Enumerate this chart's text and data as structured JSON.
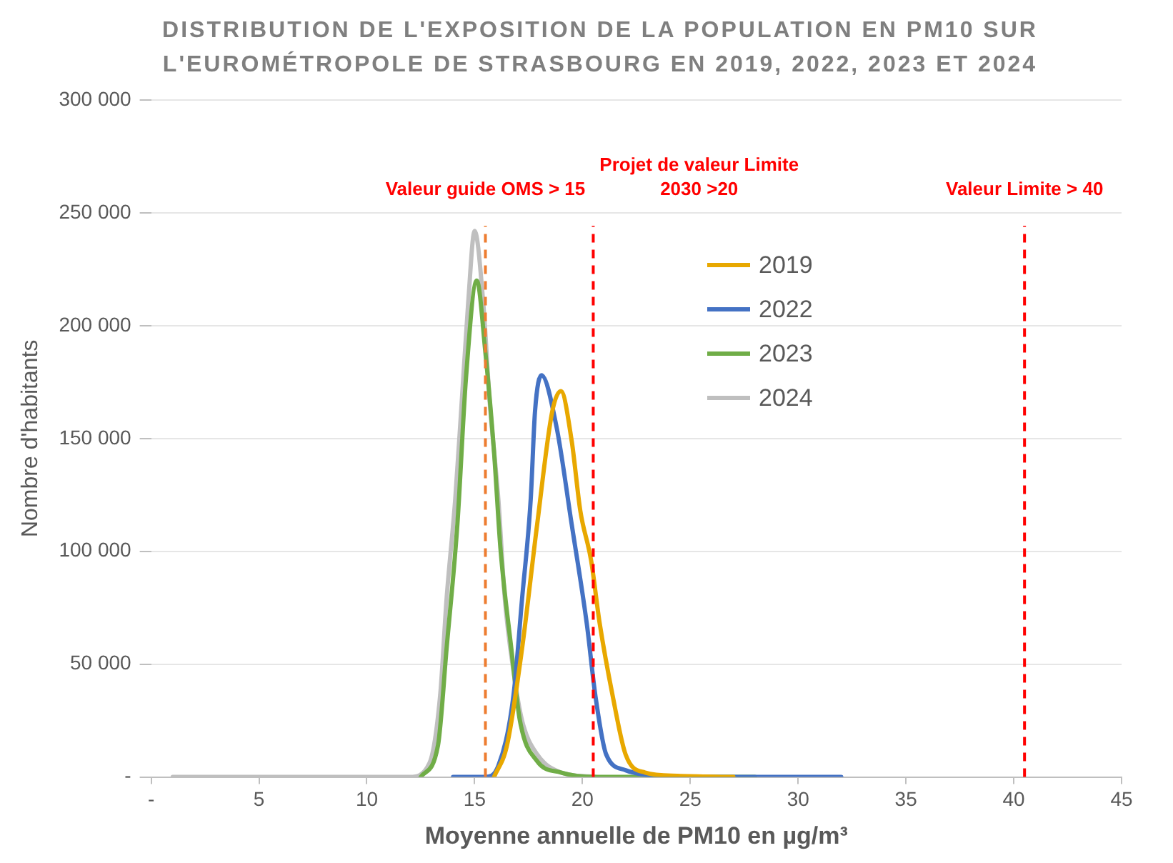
{
  "chart_data": {
    "type": "line",
    "title": "DISTRIBUTION DE L'EXPOSITION DE LA POPULATION EN PM10 SUR\nL'EUROMÉTROPOLE DE STRASBOURG EN 2019, 2022, 2023 ET 2024",
    "xlabel": "Moyenne annuelle de PM10 en µg/m³",
    "ylabel": "Nombre d'habitants",
    "xlim": [
      0,
      45
    ],
    "xticks": [
      {
        "value": 0,
        "label": "-"
      },
      5,
      10,
      15,
      20,
      25,
      30,
      35,
      40,
      45
    ],
    "ylim": [
      0,
      300000
    ],
    "yticks": [
      {
        "value": 0,
        "label": "-"
      },
      {
        "value": 50000,
        "label": "50 000"
      },
      {
        "value": 100000,
        "label": "100 000"
      },
      {
        "value": 150000,
        "label": "150 000"
      },
      {
        "value": 200000,
        "label": "200 000"
      },
      {
        "value": 250000,
        "label": "250 000"
      },
      {
        "value": 300000,
        "label": "300 000"
      }
    ],
    "grid": "y",
    "legend": "right",
    "marker": "none",
    "line_style": "solid",
    "series": [
      {
        "name": "2019",
        "color": "#e8a800",
        "x": [
          15.9,
          16.5,
          17.2,
          17.9,
          18.6,
          19.0,
          19.5,
          19.9,
          20.4,
          20.8,
          21.4,
          22.0,
          22.9,
          24.4,
          27
        ],
        "values": [
          0,
          14000,
          57000,
          112000,
          162000,
          171000,
          149000,
          118000,
          96000,
          68000,
          36000,
          10000,
          2000,
          500,
          0
        ]
      },
      {
        "name": "2022",
        "color": "#4472c4",
        "x": [
          14,
          15.5,
          16.1,
          16.8,
          17.2,
          17.6,
          17.8,
          18.1,
          18.8,
          19.5,
          20.2,
          20.6,
          21.1,
          22.0,
          22.9,
          25,
          32
        ],
        "values": [
          0,
          0,
          5000,
          36000,
          79000,
          123000,
          162000,
          178000,
          155000,
          112000,
          68000,
          36000,
          10000,
          3000,
          1000,
          0,
          0
        ]
      },
      {
        "name": "2023",
        "color": "#70ad47",
        "x": [
          12.5,
          13.3,
          13.7,
          14.2,
          14.6,
          15.1,
          15.5,
          15.9,
          16.2,
          16.7,
          17.1,
          17.9,
          19.0,
          20.6,
          28
        ],
        "values": [
          0,
          14000,
          57000,
          112000,
          177000,
          220000,
          188000,
          144000,
          101000,
          57000,
          25000,
          7000,
          2000,
          0,
          0
        ]
      },
      {
        "name": "2024",
        "color": "#bfbfbf",
        "x": [
          1,
          12.0,
          12.9,
          13.4,
          13.7,
          14.1,
          14.4,
          14.7,
          15.0,
          15.4,
          15.7,
          16.1,
          16.4,
          16.8,
          17.2,
          17.9,
          19.0,
          20.6
        ],
        "values": [
          0,
          0,
          6000,
          36000,
          79000,
          123000,
          166000,
          210000,
          242000,
          210000,
          166000,
          123000,
          79000,
          47000,
          25000,
          10000,
          2000,
          0
        ]
      }
    ],
    "ref_lines": [
      {
        "axis": "x",
        "value": 15.5,
        "label": "Valeur guide OMS > 15",
        "color": "#ed7d31",
        "line_style": "dashed"
      },
      {
        "axis": "x",
        "value": 20.5,
        "label": "Projet de valeur Limite\n2030 >20",
        "color": "#ff0000",
        "line_style": "dashed"
      },
      {
        "axis": "x",
        "value": 40.5,
        "label": "Valeur Limite > 40",
        "color": "#ff0000",
        "line_style": "dashed"
      }
    ]
  }
}
